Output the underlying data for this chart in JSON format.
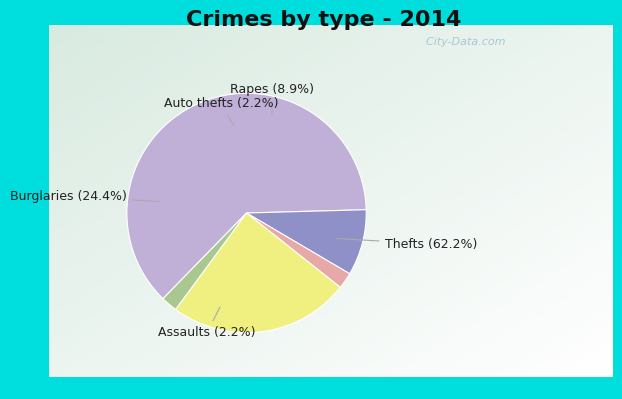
{
  "title": "Crimes by type - 2014",
  "slices": [
    {
      "label": "Thefts (62.2%)",
      "value": 62.2,
      "color": "#C0B0D8"
    },
    {
      "label": "Rapes (8.9%)",
      "value": 8.9,
      "color": "#9090C8"
    },
    {
      "label": "Auto thefts (2.2%)",
      "value": 2.2,
      "color": "#E8A8A8"
    },
    {
      "label": "Burglaries (24.4%)",
      "value": 24.4,
      "color": "#F0F080"
    },
    {
      "label": "Assaults (2.2%)",
      "value": 2.2,
      "color": "#A8C890"
    }
  ],
  "bg_color_outer": "#00DDDD",
  "title_fontsize": 16,
  "label_fontsize": 9,
  "watermark": "  City-Data.com",
  "startangle": 90
}
